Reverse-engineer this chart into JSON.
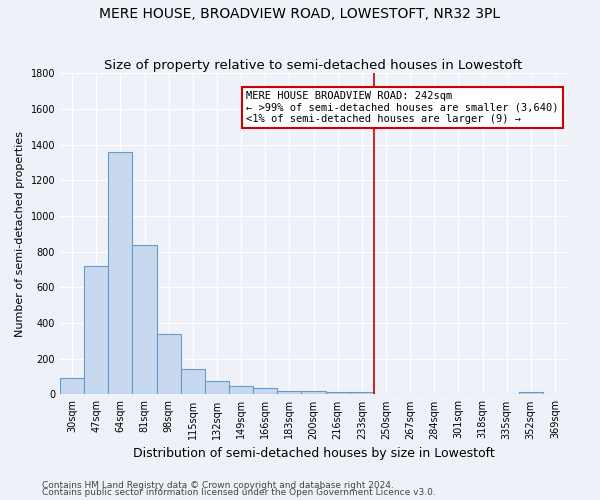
{
  "title": "MERE HOUSE, BROADVIEW ROAD, LOWESTOFT, NR32 3PL",
  "subtitle": "Size of property relative to semi-detached houses in Lowestoft",
  "xlabel": "Distribution of semi-detached houses by size in Lowestoft",
  "ylabel": "Number of semi-detached properties",
  "footnote1": "Contains HM Land Registry data © Crown copyright and database right 2024.",
  "footnote2": "Contains public sector information licensed under the Open Government Licence v3.0.",
  "bar_labels": [
    "30sqm",
    "47sqm",
    "64sqm",
    "81sqm",
    "98sqm",
    "115sqm",
    "132sqm",
    "149sqm",
    "166sqm",
    "183sqm",
    "200sqm",
    "216sqm",
    "233sqm",
    "250sqm",
    "267sqm",
    "284sqm",
    "301sqm",
    "318sqm",
    "335sqm",
    "352sqm",
    "369sqm"
  ],
  "bar_values": [
    90,
    720,
    1360,
    840,
    340,
    140,
    75,
    50,
    35,
    20,
    20,
    15,
    15,
    0,
    0,
    0,
    0,
    0,
    0,
    15,
    0
  ],
  "bar_color": "#c8d8ee",
  "bar_edge_color": "#6699cc",
  "vline_x": 13.0,
  "vline_color": "#cc0000",
  "ylim": [
    0,
    1800
  ],
  "yticks": [
    0,
    200,
    400,
    600,
    800,
    1000,
    1200,
    1400,
    1600,
    1800
  ],
  "legend_text_line1": "MERE HOUSE BROADVIEW ROAD: 242sqm",
  "legend_text_line2": "← >99% of semi-detached houses are smaller (3,640)",
  "legend_text_line3": "<1% of semi-detached houses are larger (9) →",
  "legend_box_color": "#ffffff",
  "legend_box_edge": "#cc0000",
  "background_color": "#eef2f8",
  "grid_color": "#ffffff",
  "title_fontsize": 10,
  "subtitle_fontsize": 9.5,
  "xlabel_fontsize": 9,
  "ylabel_fontsize": 8,
  "tick_fontsize": 7,
  "legend_fontsize": 7.5,
  "footnote_fontsize": 6.5
}
